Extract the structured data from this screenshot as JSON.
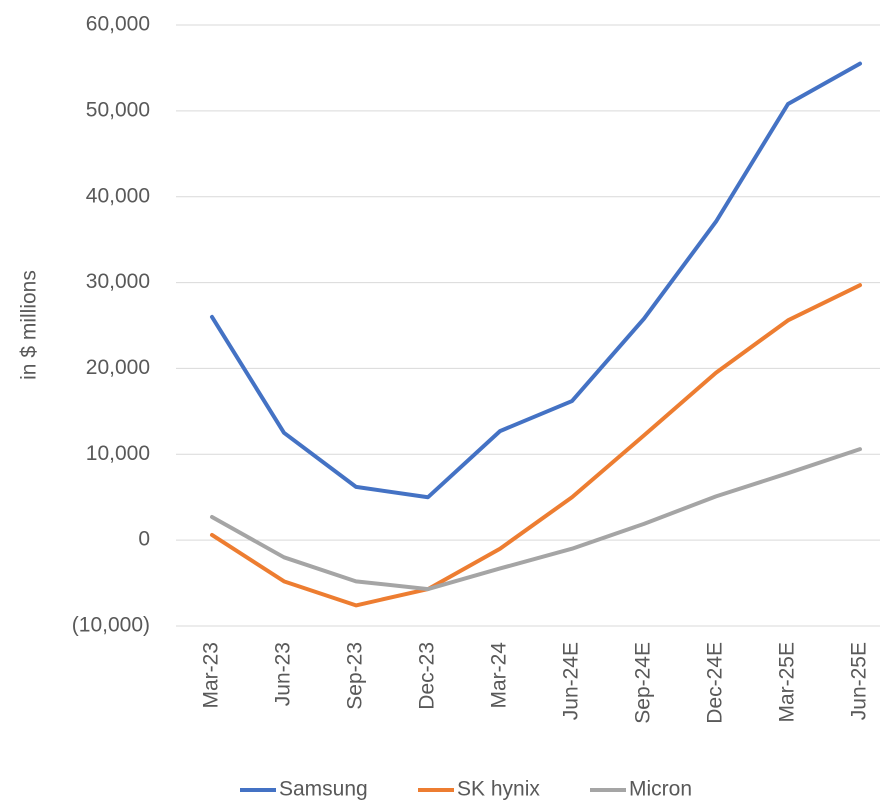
{
  "chart_data": {
    "type": "line",
    "y_label": "in $ millions",
    "categories": [
      "Mar-23",
      "Jun-23",
      "Sep-23",
      "Dec-23",
      "Mar-24",
      "Jun-24E",
      "Sep-24E",
      "Dec-24E",
      "Mar-25E",
      "Jun-25E"
    ],
    "series": [
      {
        "name": "Samsung",
        "color": "#4472c4",
        "values": [
          26000,
          12500,
          6200,
          5000,
          12700,
          16200,
          25800,
          37100,
          50800,
          55500
        ]
      },
      {
        "name": "SK hynix",
        "color": "#ed7d31",
        "values": [
          600,
          -4800,
          -7600,
          -5700,
          -1000,
          5000,
          12200,
          19500,
          25600,
          29700
        ]
      },
      {
        "name": "Micron",
        "color": "#a5a5a5",
        "values": [
          2700,
          -2000,
          -4800,
          -5700,
          -3300,
          -1000,
          1900,
          5100,
          7800,
          10600
        ]
      }
    ],
    "ylim": [
      -10000,
      60000
    ],
    "yticks": [
      {
        "value": -10000,
        "label": "(10,000)"
      },
      0,
      {
        "value": 10000,
        "label": "10,000"
      },
      {
        "value": 20000,
        "label": "20,000"
      },
      {
        "value": 30000,
        "label": "30,000"
      },
      {
        "value": 40000,
        "label": "40,000"
      },
      {
        "value": 50000,
        "label": "50,000"
      },
      {
        "value": 60000,
        "label": "60,000"
      }
    ],
    "grid": true,
    "legend": "bottom"
  }
}
